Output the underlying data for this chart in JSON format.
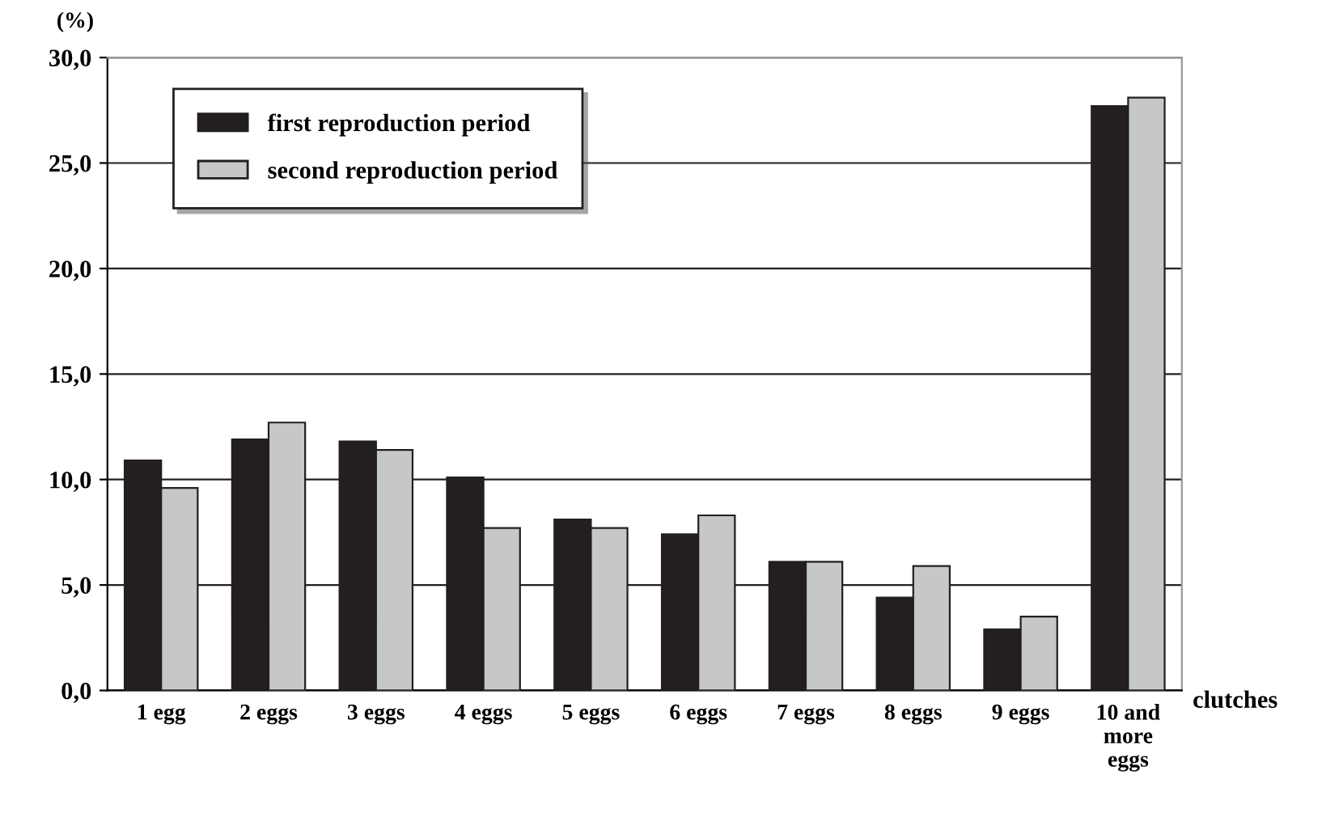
{
  "chart_data": {
    "type": "bar",
    "xlabel": "clutches",
    "ylabel": "(%)",
    "categories": [
      "1 egg",
      "2 eggs",
      "3 eggs",
      "4 eggs",
      "5 eggs",
      "6 eggs",
      "7 eggs",
      "8 eggs",
      "9 eggs",
      "10 and\nmore\neggs"
    ],
    "series": [
      {
        "name": "first reproduction period",
        "color": "#231f20",
        "values": [
          10.9,
          11.9,
          11.8,
          10.1,
          8.1,
          7.4,
          6.1,
          4.4,
          2.9,
          27.7
        ]
      },
      {
        "name": "second reproduction period",
        "color": "#c6c7c9",
        "values": [
          9.6,
          12.7,
          11.4,
          7.7,
          7.7,
          8.3,
          6.1,
          5.9,
          3.5,
          28.1
        ]
      }
    ],
    "ylim": [
      0,
      30
    ],
    "yticks": [
      {
        "value": 0,
        "label": "0,0"
      },
      {
        "value": 5,
        "label": "5,0"
      },
      {
        "value": 10,
        "label": "10,0"
      },
      {
        "value": 15,
        "label": "15,0"
      },
      {
        "value": 20,
        "label": "20,0"
      },
      {
        "value": 25,
        "label": "25,0"
      },
      {
        "value": 30,
        "label": "30,0"
      }
    ],
    "grid": "y",
    "legend": "top left"
  }
}
